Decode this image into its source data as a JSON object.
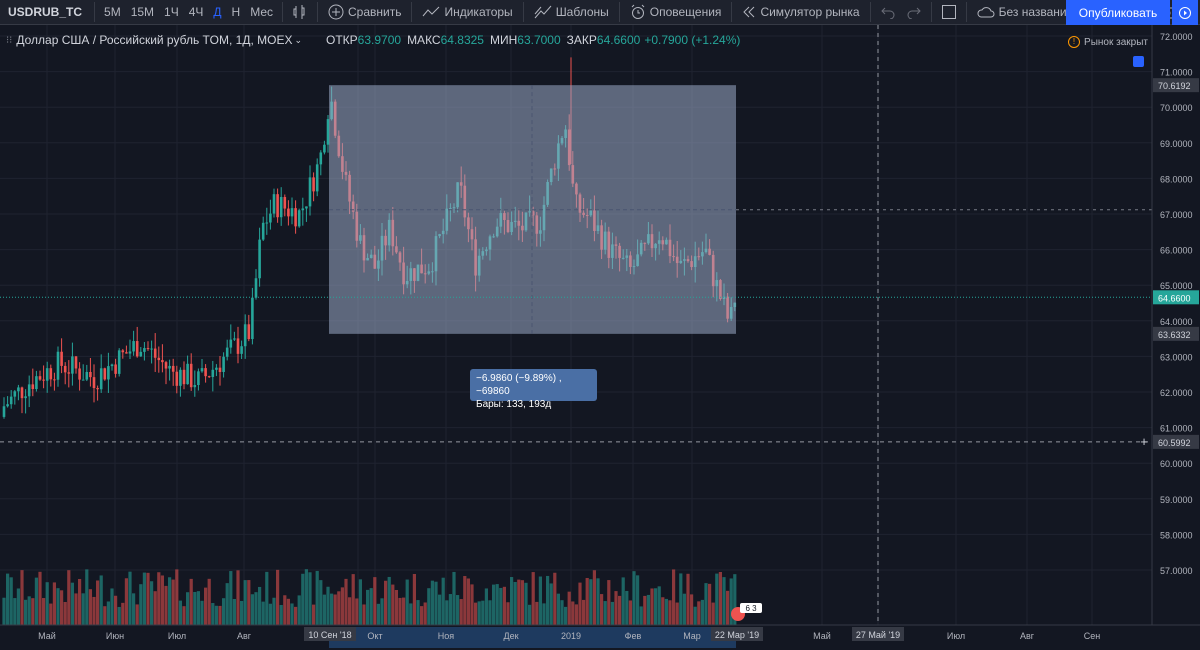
{
  "toolbar": {
    "symbol": "USDRUB_TC",
    "intervals": [
      "5М",
      "15М",
      "1Ч",
      "4Ч",
      "Д",
      "Н",
      "Мес"
    ],
    "active_interval": "Д",
    "compare": "Сравнить",
    "indicators": "Индикаторы",
    "templates": "Шаблоны",
    "alerts": "Оповещения",
    "replay": "Симулятор рынка",
    "layout_name": "Без названия",
    "publish": "Опубликовать"
  },
  "legend": {
    "title": "Доллар США / Российский рубль TOM, 1Д, MOEX",
    "open_label": "ОТКР",
    "open": "63.9700",
    "high_label": "МАКС",
    "high": "64.8325",
    "low_label": "МИН",
    "low": "63.7000",
    "close_label": "ЗАКР",
    "close": "64.6600",
    "change": "+0.7900 (+1.24%)"
  },
  "market_status": "Рынок закрыт",
  "measure": {
    "line1": "−6.9860 (−9.89%) , −69860",
    "line2": "Бары: 133, 193д"
  },
  "colors": {
    "up": "#26a69a",
    "down": "#ef5350",
    "measure_box": "#9aa9c7",
    "accent": "#2962ff"
  },
  "price_axis": {
    "ticks": [
      "72.0000",
      "71.0000",
      "70.0000",
      "69.0000",
      "68.0000",
      "67.0000",
      "66.0000",
      "65.0000",
      "64.0000",
      "63.0000",
      "62.0000",
      "61.0000",
      "60.0000",
      "59.0000",
      "58.0000",
      "57.0000"
    ],
    "labels": {
      "measure_top": "70.6192",
      "last_price": "64.6600",
      "measure_bottom": "63.6332",
      "crosshair": "60.5992"
    }
  },
  "time_axis": {
    "ticks": [
      "Май",
      "Июн",
      "Июл",
      "Авг",
      "Окт",
      "Ноя",
      "Дек",
      "2019",
      "Фев",
      "Мар",
      "Май",
      "Июл",
      "Авг",
      "Сен"
    ],
    "measure_start": "10 Сен '18",
    "measure_end": "22 Мар '19",
    "crosshair_date": "27 Май '19"
  },
  "badge": "6 3"
}
